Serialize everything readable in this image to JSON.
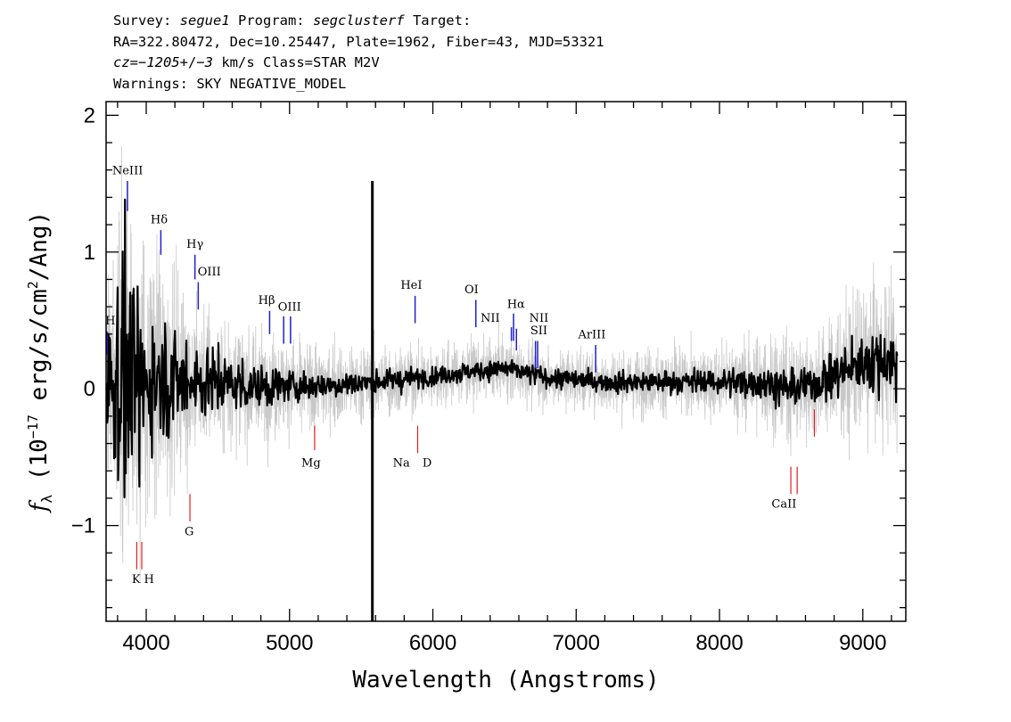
{
  "header": {
    "line1": {
      "a": "Survey: ",
      "b": "segue1",
      "c": " Program: ",
      "d": "segclusterf",
      "e": " Target:"
    },
    "line2": "RA=322.80472, Dec=10.25447, Plate=1962, Fiber=43, MJD=53321",
    "line3": {
      "a": "cz=",
      "b": "−1205",
      "c": "+/−",
      "d": "3",
      "e": " km/s Class=STAR M2V"
    },
    "line4": "Warnings: SKY NEGATIVE_MODEL"
  },
  "chart_data": {
    "type": "line",
    "xlabel": "Wavelength (Angstroms)",
    "ylabel": "fλ (10⁻¹⁷ erg/s/cm²/Ang)",
    "xlim": [
      3720,
      9300
    ],
    "ylim": [
      -1.7,
      2.1
    ],
    "xticks": [
      4000,
      5000,
      6000,
      7000,
      8000,
      9000
    ],
    "xtick_labels": [
      "4000",
      "5000",
      "6000",
      "7000",
      "8000",
      "9000"
    ],
    "yticks": [
      -1,
      0,
      1,
      2
    ],
    "ytick_labels": [
      "−1",
      "0",
      "1",
      "2"
    ],
    "grid": false,
    "series": [
      {
        "role": "error",
        "color": "#c8c8c8",
        "x": [
          3720,
          3800,
          3850,
          3900,
          3950,
          4000,
          4100,
          4200,
          4300,
          4400,
          4500,
          4700,
          5000,
          5300,
          5600,
          5900,
          6200,
          6500,
          6800,
          7200,
          7600,
          8000,
          8300,
          8500,
          8700,
          8900,
          9050,
          9200,
          9240
        ],
        "values": [
          0.55,
          1.1,
          1.4,
          1.2,
          1.0,
          0.9,
          0.8,
          0.7,
          0.6,
          0.5,
          0.45,
          0.38,
          0.32,
          0.28,
          0.25,
          0.22,
          0.2,
          0.2,
          0.2,
          0.2,
          0.22,
          0.25,
          0.3,
          0.35,
          0.35,
          0.45,
          0.5,
          0.55,
          0.6
        ]
      },
      {
        "role": "flux",
        "color": "#000000",
        "x": [
          3720,
          3800,
          3850,
          3900,
          3950,
          4000,
          4100,
          4200,
          4300,
          4400,
          4500,
          4700,
          5000,
          5300,
          5600,
          5900,
          6200,
          6500,
          6800,
          7200,
          7600,
          8000,
          8300,
          8500,
          8700,
          8900,
          9050,
          9200,
          9240
        ],
        "values": [
          0.05,
          0.1,
          0.12,
          0.05,
          0.0,
          0.05,
          0.1,
          0.05,
          0.08,
          0.05,
          0.05,
          0.02,
          0.02,
          0.03,
          0.05,
          0.08,
          0.12,
          0.15,
          0.08,
          0.05,
          0.05,
          0.05,
          0.05,
          0.0,
          0.05,
          0.15,
          0.2,
          0.22,
          0.15
        ],
        "noise": [
          0.45,
          0.65,
          0.75,
          0.6,
          0.5,
          0.45,
          0.38,
          0.3,
          0.25,
          0.22,
          0.2,
          0.15,
          0.1,
          0.08,
          0.07,
          0.06,
          0.06,
          0.06,
          0.06,
          0.06,
          0.07,
          0.08,
          0.1,
          0.12,
          0.12,
          0.15,
          0.18,
          0.2,
          0.2
        ]
      }
    ],
    "spike": {
      "x": 5578,
      "y": 1.52
    },
    "emission_lines": [
      {
        "label": "H",
        "x": 3727,
        "y1": 0.25,
        "y2": 0.42,
        "lx": 3750,
        "ly": 0.47
      },
      {
        "label": "NeIII",
        "x": 3869,
        "y1": 1.3,
        "y2": 1.52,
        "lx": 3870,
        "ly": 1.57
      },
      {
        "label": "Hδ",
        "x": 4102,
        "y1": 0.98,
        "y2": 1.16,
        "lx": 4090,
        "ly": 1.21
      },
      {
        "label": "Hγ",
        "x": 4340,
        "y1": 0.8,
        "y2": 0.98,
        "lx": 4340,
        "ly": 1.03
      },
      {
        "label": "OIII",
        "x": 4363,
        "y1": 0.58,
        "y2": 0.78,
        "lx": 4440,
        "ly": 0.83
      },
      {
        "label": "Hβ",
        "x": 4861,
        "y1": 0.4,
        "y2": 0.57,
        "lx": 4840,
        "ly": 0.62
      },
      {
        "label": "OIII",
        "x": 4959,
        "y1": 0.33,
        "y2": 0.53,
        "lx": 5000,
        "ly": 0.57
      },
      {
        "label": "",
        "x": 5007,
        "y1": 0.33,
        "y2": 0.53,
        "lx": 5007,
        "ly": 0.53
      },
      {
        "label": "HeI",
        "x": 5876,
        "y1": 0.48,
        "y2": 0.68,
        "lx": 5850,
        "ly": 0.73
      },
      {
        "label": "OI",
        "x": 6300,
        "y1": 0.45,
        "y2": 0.65,
        "lx": 6270,
        "ly": 0.7
      },
      {
        "label": "NII",
        "x": 6548,
        "y1": 0.35,
        "y2": 0.45,
        "lx": 6400,
        "ly": 0.49
      },
      {
        "label": "Hα",
        "x": 6563,
        "y1": 0.35,
        "y2": 0.55,
        "lx": 6580,
        "ly": 0.59
      },
      {
        "label": "NII",
        "x": 6583,
        "y1": 0.28,
        "y2": 0.44,
        "lx": 6740,
        "ly": 0.49
      },
      {
        "label": "SII",
        "x": 6716,
        "y1": 0.15,
        "y2": 0.35,
        "lx": 6740,
        "ly": 0.4
      },
      {
        "label": "",
        "x": 6731,
        "y1": 0.15,
        "y2": 0.35,
        "lx": 6731,
        "ly": 0.35
      },
      {
        "label": "ArIII",
        "x": 7136,
        "y1": 0.12,
        "y2": 0.32,
        "lx": 7110,
        "ly": 0.37
      }
    ],
    "absorption_lines": [
      {
        "label": "K",
        "x": 3934,
        "y1": -1.12,
        "y2": -1.32,
        "lx": 3930,
        "ly": -1.42
      },
      {
        "label": "H",
        "x": 3969,
        "y1": -1.12,
        "y2": -1.32,
        "lx": 4020,
        "ly": -1.42
      },
      {
        "label": "G",
        "x": 4305,
        "y1": -0.77,
        "y2": -0.97,
        "lx": 4300,
        "ly": -1.07
      },
      {
        "label": "Mg",
        "x": 5175,
        "y1": -0.27,
        "y2": -0.45,
        "lx": 5150,
        "ly": -0.57
      },
      {
        "label": "Na",
        "x": 5894,
        "y1": -0.27,
        "y2": -0.47,
        "lx": 5780,
        "ly": -0.57
      },
      {
        "label": "D",
        "x": 5894,
        "y1": -0.27,
        "y2": -0.27,
        "lx": 5960,
        "ly": -0.57
      },
      {
        "label": "CaII",
        "x": 8498,
        "y1": -0.57,
        "y2": -0.77,
        "lx": 8450,
        "ly": -0.87
      },
      {
        "label": "",
        "x": 8542,
        "y1": -0.57,
        "y2": -0.77,
        "lx": 8542,
        "ly": -0.77
      },
      {
        "label": "",
        "x": 8662,
        "y1": -0.15,
        "y2": -0.35,
        "lx": 8662,
        "ly": -0.35
      }
    ]
  }
}
